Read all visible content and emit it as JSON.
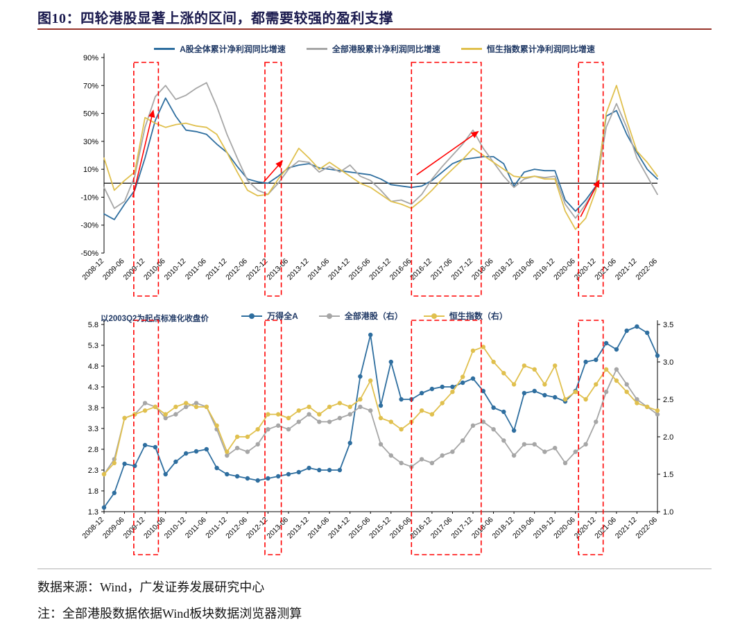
{
  "page": {
    "title": "图10：四轮港股显著上涨的区间，都需要较强的盈利支撑"
  },
  "colors": {
    "blue": "#2e6e9f",
    "gray": "#a6a6a6",
    "yellow": "#e0c04e",
    "red": "#ff0000",
    "title": "#1a1a4e",
    "legend_text": "#1f3864",
    "rule": "#973228"
  },
  "footer": {
    "source": "数据来源：Wind，广发证券发展研究中心",
    "note": "注：全部港股数据依据Wind板块数据浏览器测算"
  },
  "chart_data": [
    {
      "type": "line",
      "title": "",
      "xlabel": "",
      "ylabel": "",
      "legend_position": "top-center",
      "grid": false,
      "ylim": [
        -50,
        90
      ],
      "ytick_step": 20,
      "ytick_suffix": "%",
      "zero_line": true,
      "x_label_every": 2,
      "categories": [
        "2008-12",
        "2009-03",
        "2009-06",
        "2009-09",
        "2009-12",
        "2010-03",
        "2010-06",
        "2010-09",
        "2010-12",
        "2011-03",
        "2011-06",
        "2011-09",
        "2011-12",
        "2012-03",
        "2012-06",
        "2012-09",
        "2012-12",
        "2013-03",
        "2013-06",
        "2013-09",
        "2013-12",
        "2014-03",
        "2014-06",
        "2014-09",
        "2014-12",
        "2015-03",
        "2015-06",
        "2015-09",
        "2015-12",
        "2016-03",
        "2016-06",
        "2016-09",
        "2016-12",
        "2017-03",
        "2017-06",
        "2017-09",
        "2017-12",
        "2018-03",
        "2018-06",
        "2018-09",
        "2018-12",
        "2019-03",
        "2019-06",
        "2019-09",
        "2019-12",
        "2020-03",
        "2020-06",
        "2020-09",
        "2020-12",
        "2021-03",
        "2021-06",
        "2021-09",
        "2021-12",
        "2022-03",
        "2022-06"
      ],
      "series": [
        {
          "name": "A股全体累计净利润同比增速",
          "color_key": "blue",
          "values": [
            -22,
            -26,
            -15,
            -5,
            18,
            45,
            61,
            48,
            38,
            37,
            35,
            28,
            22,
            12,
            3,
            1,
            0,
            5,
            11,
            13,
            14,
            11,
            10,
            9,
            8,
            7,
            6,
            3,
            -1,
            -2,
            -3,
            -2,
            2,
            8,
            14,
            17,
            18,
            19,
            19,
            14,
            -2,
            8,
            10,
            9,
            9,
            -12,
            -20,
            -12,
            -2,
            48,
            52,
            35,
            22,
            10,
            3
          ]
        },
        {
          "name": "全部港股累计净利润同比增速",
          "color_key": "gray",
          "values": [
            -3,
            -18,
            -13,
            5,
            40,
            62,
            70,
            60,
            63,
            68,
            72,
            55,
            35,
            18,
            2,
            -5,
            -8,
            0,
            10,
            16,
            15,
            8,
            12,
            8,
            13,
            5,
            2,
            -5,
            -13,
            -12,
            -15,
            -8,
            3,
            12,
            20,
            28,
            38,
            25,
            15,
            5,
            -3,
            3,
            5,
            4,
            5,
            -15,
            -25,
            -15,
            -3,
            40,
            57,
            40,
            18,
            5,
            -8
          ]
        },
        {
          "name": "恒生指数累计净利润同比增速",
          "color_key": "yellow",
          "values": [
            18,
            -5,
            2,
            8,
            47,
            43,
            40,
            42,
            43,
            41,
            40,
            35,
            22,
            8,
            -5,
            -9,
            -8,
            3,
            12,
            25,
            18,
            10,
            15,
            10,
            5,
            0,
            -3,
            -8,
            -13,
            -15,
            -18,
            -12,
            -5,
            3,
            10,
            17,
            25,
            20,
            15,
            10,
            5,
            4,
            5,
            3,
            3,
            -20,
            -33,
            -25,
            -5,
            50,
            70,
            45,
            23,
            15,
            5
          ]
        }
      ],
      "highlight_boxes": [
        [
          2.9,
          5.3
        ],
        [
          15.7,
          17.3
        ],
        [
          30.0,
          36.8
        ],
        [
          46.3,
          48.7
        ]
      ],
      "arrows": [
        [
          2.8,
          -10,
          4.8,
          52
        ],
        [
          15.6,
          1,
          17.4,
          16
        ],
        [
          30.5,
          6,
          36.5,
          37
        ],
        [
          46.5,
          -24,
          48.3,
          2
        ]
      ]
    },
    {
      "type": "line",
      "title": "",
      "annotation": "以2003Q2为起点标准化收盘价",
      "legend_position": "top-center",
      "grid": false,
      "ylim_left": [
        1.3,
        5.8
      ],
      "ylim_right": [
        1.0,
        3.5
      ],
      "ytick_step": 0.5,
      "markers": true,
      "x_label_every": 2,
      "categories": [
        "2008-12",
        "2009-03",
        "2009-06",
        "2009-09",
        "2009-12",
        "2010-03",
        "2010-06",
        "2010-09",
        "2010-12",
        "2011-03",
        "2011-06",
        "2011-09",
        "2011-12",
        "2012-03",
        "2012-06",
        "2012-09",
        "2012-12",
        "2013-03",
        "2013-06",
        "2013-09",
        "2013-12",
        "2014-03",
        "2014-06",
        "2014-09",
        "2014-12",
        "2015-03",
        "2015-06",
        "2015-09",
        "2015-12",
        "2016-03",
        "2016-06",
        "2016-09",
        "2016-12",
        "2017-03",
        "2017-06",
        "2017-09",
        "2017-12",
        "2018-03",
        "2018-06",
        "2018-09",
        "2018-12",
        "2019-03",
        "2019-06",
        "2019-09",
        "2019-12",
        "2020-03",
        "2020-06",
        "2020-09",
        "2020-12",
        "2021-03",
        "2021-06",
        "2021-09",
        "2021-12",
        "2022-03",
        "2022-06"
      ],
      "series": [
        {
          "name": "万得全A",
          "axis": "left",
          "color_key": "blue",
          "values": [
            1.4,
            1.75,
            2.45,
            2.4,
            2.9,
            2.85,
            2.2,
            2.5,
            2.7,
            2.75,
            2.8,
            2.35,
            2.2,
            2.15,
            2.1,
            2.05,
            2.1,
            2.15,
            2.2,
            2.25,
            2.35,
            2.3,
            2.3,
            2.3,
            2.95,
            4.55,
            5.55,
            3.85,
            4.9,
            4.0,
            4.0,
            4.15,
            4.25,
            4.3,
            4.3,
            4.4,
            4.5,
            4.2,
            3.8,
            3.7,
            3.25,
            4.15,
            4.2,
            4.1,
            4.05,
            3.95,
            4.2,
            4.9,
            4.95,
            5.35,
            5.2,
            5.65,
            5.75,
            5.6,
            5.05
          ]
        },
        {
          "name": "全部港股（右）",
          "axis": "right",
          "color_key": "gray",
          "values": [
            1.5,
            1.7,
            2.25,
            2.3,
            2.45,
            2.4,
            2.25,
            2.3,
            2.4,
            2.45,
            2.4,
            2.1,
            1.75,
            1.85,
            1.8,
            1.9,
            2.1,
            2.15,
            2.1,
            2.2,
            2.3,
            2.2,
            2.2,
            2.25,
            2.3,
            2.4,
            2.35,
            1.9,
            1.75,
            1.65,
            1.6,
            1.7,
            1.65,
            1.75,
            1.8,
            1.95,
            2.15,
            2.2,
            2.1,
            1.95,
            1.75,
            1.9,
            1.9,
            1.8,
            1.85,
            1.65,
            1.8,
            1.9,
            2.2,
            2.6,
            2.9,
            2.7,
            2.5,
            2.4,
            2.3
          ]
        },
        {
          "name": "恒生指数（右）",
          "axis": "right",
          "color_key": "yellow",
          "values": [
            1.5,
            1.65,
            2.25,
            2.3,
            2.35,
            2.4,
            2.3,
            2.4,
            2.45,
            2.4,
            2.4,
            2.15,
            1.8,
            2.0,
            2.0,
            2.1,
            2.3,
            2.3,
            2.25,
            2.35,
            2.4,
            2.3,
            2.4,
            2.45,
            2.4,
            2.5,
            2.75,
            2.25,
            2.2,
            2.1,
            2.2,
            2.35,
            2.3,
            2.45,
            2.6,
            2.8,
            3.15,
            3.2,
            3.0,
            2.85,
            2.7,
            2.95,
            2.9,
            2.7,
            2.95,
            2.5,
            2.6,
            2.5,
            2.7,
            2.9,
            2.75,
            2.6,
            2.45,
            2.4,
            2.35
          ]
        }
      ],
      "highlight_boxes": [
        [
          2.9,
          5.3
        ],
        [
          15.7,
          17.3
        ],
        [
          30.0,
          36.8
        ],
        [
          46.3,
          48.7
        ]
      ]
    }
  ]
}
